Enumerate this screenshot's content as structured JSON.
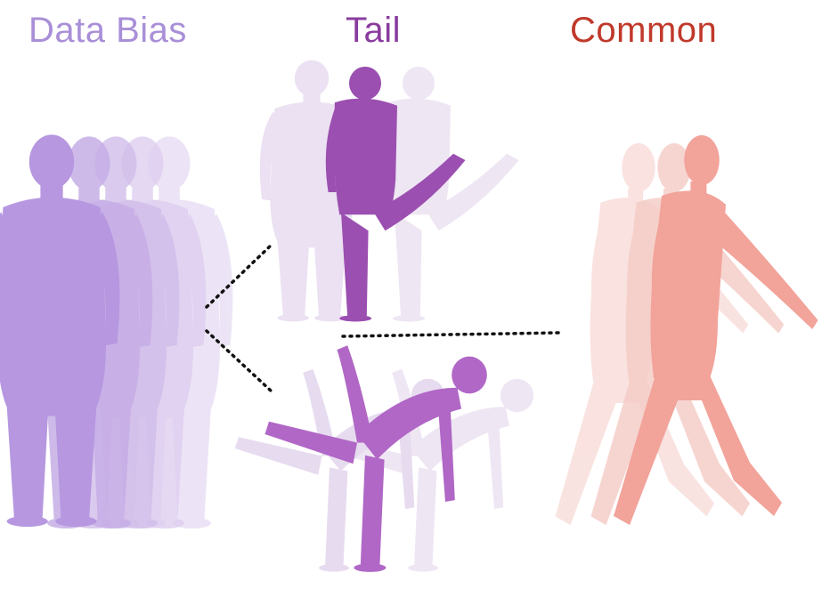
{
  "labels": {
    "data_bias": "Data Bias",
    "tail": "Tail",
    "common": "Common"
  },
  "colors": {
    "data_bias": "#a98fd8",
    "tail": "#8a3c9e",
    "common": "#c0392b",
    "bias_body": "#b697e0",
    "tail_body": "#9b4fb0",
    "common_body": "#f2a39a",
    "connector": "#111111"
  }
}
